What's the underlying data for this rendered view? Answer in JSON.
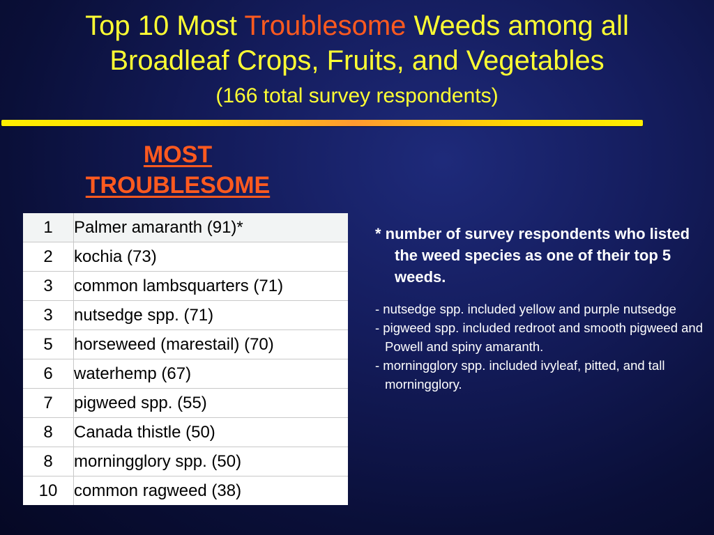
{
  "title": {
    "line1_before": "Top 10 Most ",
    "line1_accent": "Troublesome",
    "line1_after": " Weeds among all",
    "line2": "Broadleaf Crops, Fruits, and Vegetables",
    "subtitle": "(166 total survey respondents)"
  },
  "column_heading": {
    "line1": "MOST",
    "line2": "TROUBLESOME"
  },
  "weeds": [
    {
      "rank": "1",
      "name": "Palmer amaranth (91)*"
    },
    {
      "rank": "2",
      "name": "kochia (73)"
    },
    {
      "rank": "3",
      "name": "common lambsquarters (71)"
    },
    {
      "rank": "3",
      "name": "nutsedge spp. (71)"
    },
    {
      "rank": "5",
      "name": "horseweed (marestail) (70)"
    },
    {
      "rank": "6",
      "name": "waterhemp (67)"
    },
    {
      "rank": "7",
      "name": "pigweed spp. (55)"
    },
    {
      "rank": "8",
      "name": "Canada thistle (50)"
    },
    {
      "rank": "8",
      "name": "morningglory spp. (50)"
    },
    {
      "rank": "10",
      "name": "common ragweed (38)"
    }
  ],
  "footnote": "* number of survey respondents who listed the weed species as one of their top 5 weeds.",
  "notes": [
    "- nutsedge spp. included yellow and purple nutsedge",
    "- pigweed spp. included redroot and smooth pigweed and Powell and spiny amaranth.",
    "- morningglory spp. included ivyleaf, pitted, and tall morningglory."
  ],
  "colors": {
    "title": "#ffff33",
    "accent": "#ff5a1f",
    "background": "#141c5c",
    "rule": "#ffee00"
  }
}
